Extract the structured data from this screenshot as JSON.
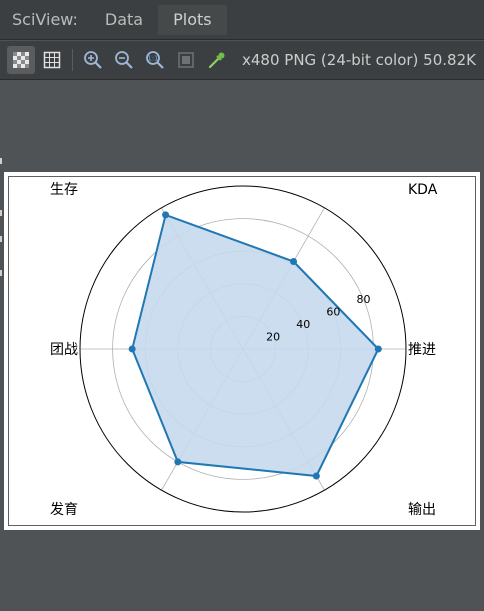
{
  "window": {
    "tool_title": "SciView:",
    "tabs": [
      {
        "label": "Data",
        "active": false
      },
      {
        "label": "Plots",
        "active": true
      }
    ]
  },
  "toolbar": {
    "buttons": [
      {
        "icon": "checkerboard-background-icon",
        "selected": true
      },
      {
        "icon": "grid-background-icon",
        "selected": false
      },
      {
        "icon": "zoom-in-icon",
        "selected": false
      },
      {
        "icon": "zoom-out-icon",
        "selected": false
      },
      {
        "icon": "actual-size-icon",
        "selected": false
      },
      {
        "icon": "fit-icon",
        "selected": false
      },
      {
        "icon": "color-picker-icon",
        "selected": false
      }
    ],
    "image_info": "x480 PNG (24-bit color) 50.82K"
  },
  "colors": {
    "panel_bg": "#3c3f41",
    "workspace_bg": "#4f5356",
    "series_line": "#1f77b4",
    "series_fill": "#c5d9ec"
  },
  "chart_data": {
    "type": "radar",
    "categories": [
      "推进",
      "KDA",
      "生存",
      "团战",
      "发育",
      "输出"
    ],
    "values": [
      83,
      62,
      95,
      68,
      80,
      90
    ],
    "rlim": [
      0,
      100
    ],
    "r_ticks": [
      20,
      40,
      60,
      80
    ],
    "r_tick_labels": [
      "20",
      "40",
      "60",
      "80"
    ],
    "grid": true
  }
}
